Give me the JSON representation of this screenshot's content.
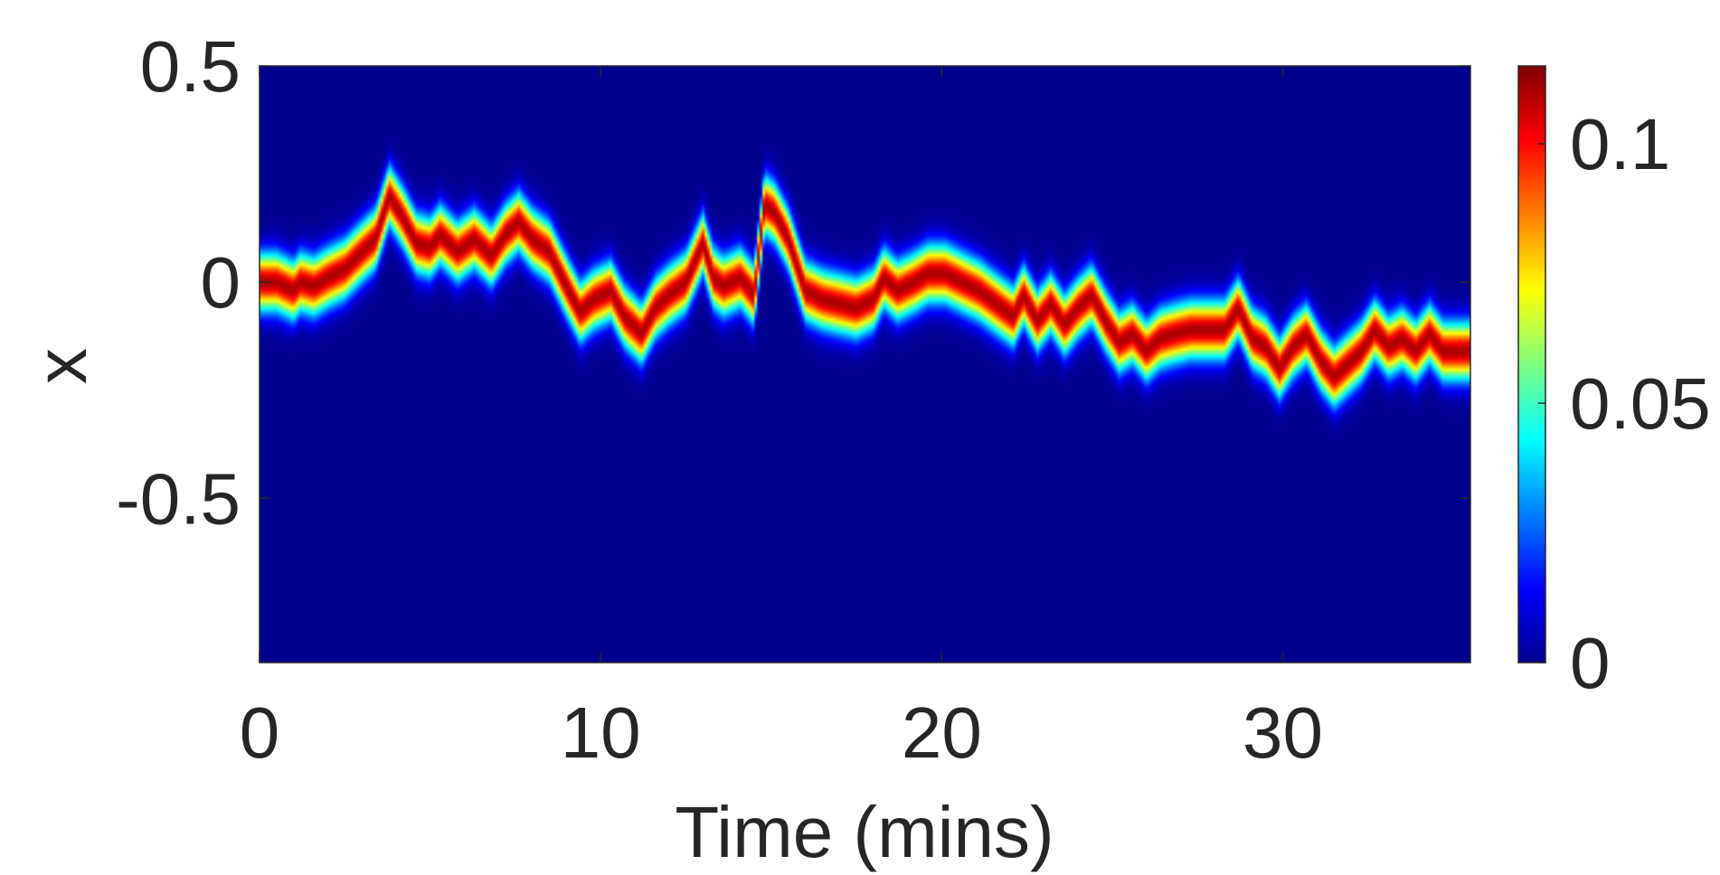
{
  "chart_data": {
    "type": "heatmap",
    "xlabel": "Time (mins)",
    "ylabel": "x",
    "xlim": [
      0,
      35.5
    ],
    "ylim": [
      -0.88,
      0.5
    ],
    "x_ticks": [
      0,
      10,
      20,
      30
    ],
    "x_tick_labels": [
      "0",
      "10",
      "20",
      "30"
    ],
    "y_ticks": [
      0.5,
      0,
      -0.5
    ],
    "y_tick_labels": [
      "0.5",
      "0",
      "-0.5"
    ],
    "colorbar": {
      "colormap": "jet",
      "range": [
        0,
        0.115
      ],
      "ticks": [
        0,
        0.05,
        0.1
      ],
      "tick_labels": [
        "0",
        "0.05",
        "0.1"
      ]
    },
    "background_value": 0,
    "peak_value": 0.11,
    "band_width_x": 0.045,
    "ridge": {
      "time": [
        0,
        0.5,
        1.0,
        1.2,
        1.6,
        2.0,
        2.5,
        3.0,
        3.4,
        3.8,
        4.2,
        4.6,
        5.0,
        5.3,
        5.8,
        6.3,
        6.8,
        7.2,
        7.6,
        8.0,
        8.5,
        9.0,
        9.4,
        9.8,
        10.3,
        10.7,
        11.2,
        11.6,
        12.0,
        12.5,
        13.0,
        13.3,
        13.6,
        14.1,
        14.5,
        14.8,
        15.1,
        15.5,
        16.0,
        16.5,
        17.0,
        17.5,
        18.0,
        18.3,
        18.7,
        19.2,
        19.6,
        20.1,
        20.6,
        21.1,
        21.6,
        22.1,
        22.4,
        22.8,
        23.2,
        23.6,
        24.0,
        24.4,
        24.8,
        25.2,
        25.6,
        26.0,
        26.4,
        26.8,
        27.3,
        27.8,
        28.3,
        28.7,
        29.1,
        29.5,
        29.9,
        30.3,
        30.7,
        31.1,
        31.5,
        31.9,
        32.3,
        32.7,
        33.1,
        33.5,
        33.9,
        34.3,
        34.7,
        35.1,
        35.5
      ],
      "x": [
        0.0,
        0.0,
        -0.02,
        0.0,
        -0.01,
        0.01,
        0.03,
        0.07,
        0.1,
        0.2,
        0.15,
        0.09,
        0.08,
        0.11,
        0.07,
        0.1,
        0.06,
        0.11,
        0.14,
        0.1,
        0.07,
        -0.01,
        -0.07,
        -0.04,
        -0.02,
        -0.08,
        -0.12,
        -0.06,
        -0.03,
        0.0,
        0.09,
        0.01,
        -0.01,
        0.01,
        -0.03,
        0.18,
        0.16,
        0.1,
        -0.02,
        -0.04,
        -0.05,
        -0.06,
        -0.04,
        0.01,
        -0.02,
        0.0,
        0.02,
        0.02,
        0.0,
        -0.02,
        -0.05,
        -0.08,
        -0.03,
        -0.09,
        -0.05,
        -0.1,
        -0.06,
        -0.03,
        -0.09,
        -0.14,
        -0.12,
        -0.16,
        -0.13,
        -0.12,
        -0.11,
        -0.11,
        -0.11,
        -0.06,
        -0.13,
        -0.15,
        -0.2,
        -0.15,
        -0.12,
        -0.18,
        -0.22,
        -0.19,
        -0.16,
        -0.11,
        -0.15,
        -0.13,
        -0.16,
        -0.12,
        -0.16,
        -0.16,
        -0.16
      ]
    }
  }
}
